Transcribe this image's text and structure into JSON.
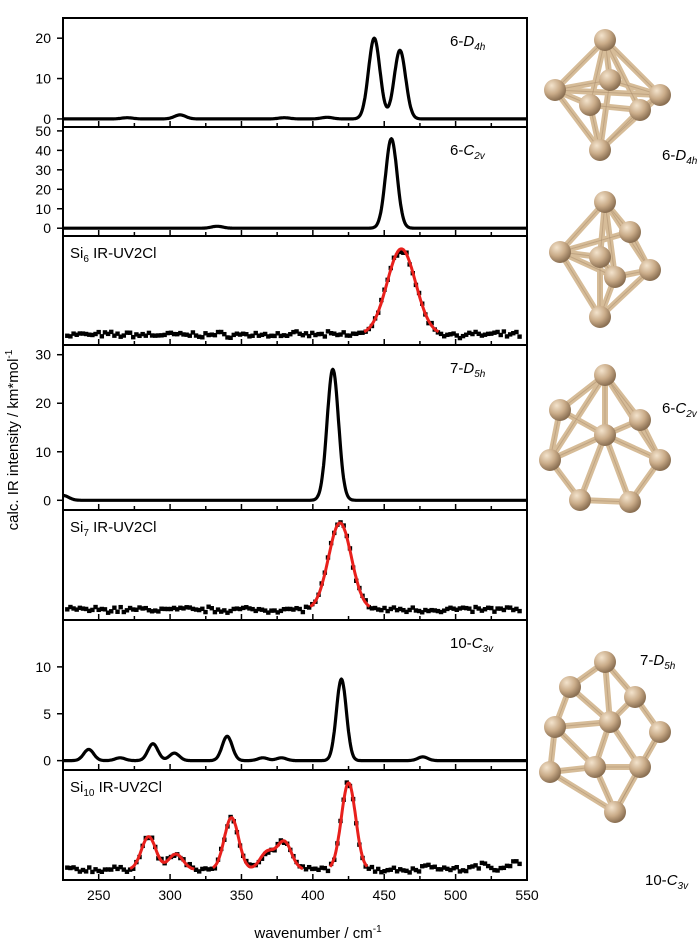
{
  "chart_data": {
    "type": "line",
    "xlabel": "wavenumber / cm",
    "xlabel_sup": "-1",
    "ylabel": "calc. IR intensity / km*mol",
    "ylabel_sup": "-1",
    "xlim": [
      225,
      550
    ],
    "xticks": [
      250,
      300,
      350,
      400,
      450,
      500,
      550
    ],
    "panels": [
      {
        "kind": "calc",
        "label_prefix": "6-",
        "label_sym": "D",
        "label_sub": "4h",
        "ylim": [
          -2,
          25
        ],
        "yticks": [
          0,
          10,
          20
        ],
        "width": 4,
        "peaks": [
          [
            443,
            20
          ],
          [
            461,
            17
          ],
          [
            270,
            0.3
          ],
          [
            307,
            1
          ],
          [
            380,
            0.3
          ],
          [
            410,
            0.4
          ]
        ]
      },
      {
        "kind": "calc",
        "label_prefix": "6-",
        "label_sym": "C",
        "label_sub": "2v",
        "ylim": [
          -4,
          52
        ],
        "yticks": [
          0,
          10,
          20,
          30,
          40,
          50
        ],
        "width": 4,
        "peaks": [
          [
            455,
            46
          ],
          [
            333,
            1
          ]
        ]
      },
      {
        "kind": "exp",
        "label_prefix": "Si",
        "label_sub": "6",
        "label_suffix": " IR-UV2Cl",
        "ylim": [
          -0.12,
          1.15
        ],
        "width": 10,
        "peaks": [
          [
            462,
            1.0
          ]
        ]
      },
      {
        "kind": "calc",
        "label_prefix": "7-",
        "label_sym": "D",
        "label_sub": "5h",
        "ylim": [
          -2,
          32
        ],
        "yticks": [
          0,
          10,
          20,
          30
        ],
        "width": 4,
        "peaks": [
          [
            414,
            27
          ],
          [
            225,
            1
          ]
        ]
      },
      {
        "kind": "exp",
        "label_prefix": "Si",
        "label_sub": "7",
        "label_suffix": " IR-UV2Cl",
        "ylim": [
          -0.12,
          1.15
        ],
        "width": 8,
        "peaks": [
          [
            419,
            1.0
          ]
        ]
      },
      {
        "kind": "calc",
        "label_prefix": "10-",
        "label_sym": "C",
        "label_sub": "3v",
        "ylim": [
          -1,
          15
        ],
        "yticks": [
          0,
          5,
          10
        ],
        "width": 3.5,
        "peaks": [
          [
            420,
            8.7
          ],
          [
            243,
            1.2
          ],
          [
            265,
            0.3
          ],
          [
            288,
            1.8
          ],
          [
            303,
            0.8
          ],
          [
            340,
            2.6
          ],
          [
            365,
            0.3
          ],
          [
            378,
            0.3
          ],
          [
            477,
            0.4
          ]
        ]
      },
      {
        "kind": "exp",
        "label_prefix": "Si",
        "label_sub": "10",
        "label_suffix": " IR-UV2Cl",
        "ylim": [
          -0.12,
          1.15
        ],
        "width": 5,
        "peaks": [
          [
            285,
            0.38
          ],
          [
            304,
            0.18
          ],
          [
            343,
            0.6
          ],
          [
            368,
            0.2
          ],
          [
            380,
            0.32
          ],
          [
            425,
            1.0
          ],
          [
            483,
            0.05
          ],
          [
            519,
            0.05
          ],
          [
            540,
            0.08
          ]
        ]
      }
    ],
    "colors": {
      "calc": "#000000",
      "exp_points": "#000000",
      "exp_fit": "#e8201c"
    }
  },
  "structures": [
    {
      "prefix": "6-",
      "sym": "D",
      "sub": "4h"
    },
    {
      "prefix": "6-",
      "sym": "C",
      "sub": "2v"
    },
    {
      "prefix": "7-",
      "sym": "D",
      "sub": "5h"
    },
    {
      "prefix": "10-",
      "sym": "C",
      "sub": "3v"
    }
  ],
  "colors": {
    "atom": "#c9ab88",
    "bond": "#d6bc98"
  }
}
